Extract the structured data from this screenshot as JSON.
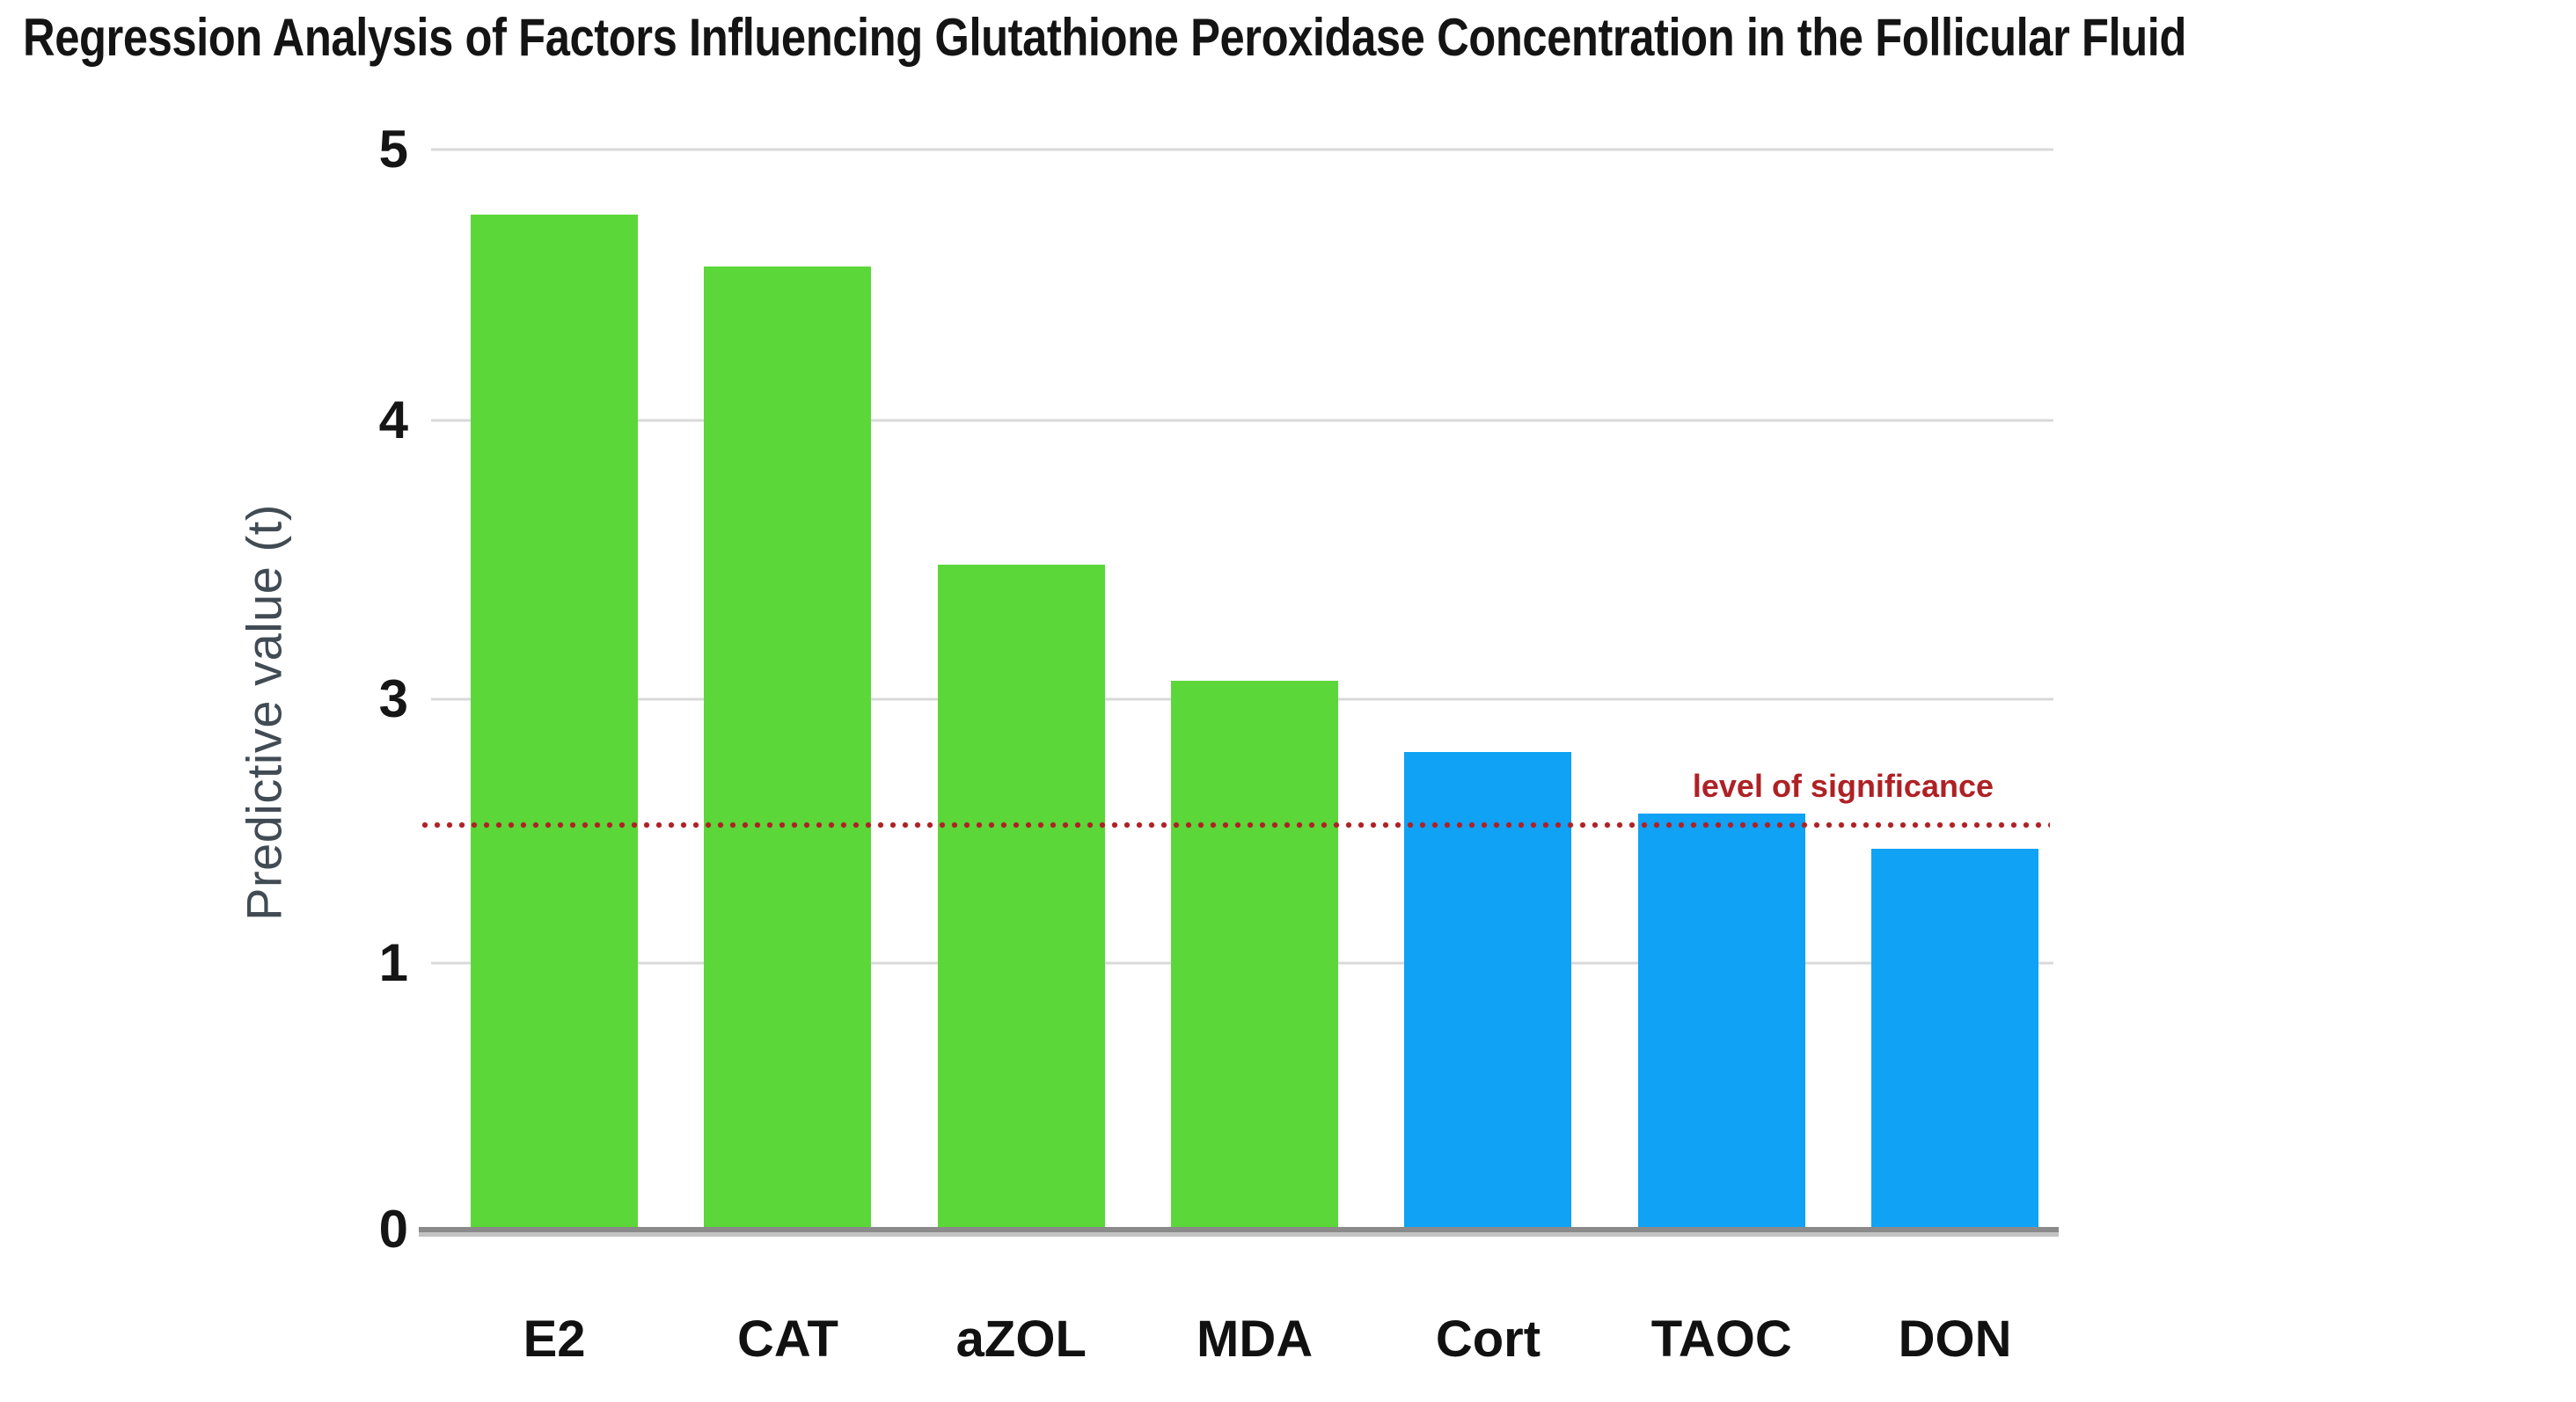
{
  "title": "Regression Analysis of Factors Influencing Glutathione Peroxidase Concentration in the Follicular Fluid",
  "colors": {
    "green": "#5cd739",
    "blue": "#0fa2f5",
    "significance_red": "#ae2125",
    "gridline": "#d9d9d9",
    "axis_line": "#8a8a8a",
    "axis_title_gray": "#414b54",
    "title_black": "#141414"
  },
  "chart_data": {
    "type": "bar",
    "title": "Regression Analysis of Factors Influencing Glutathione Peroxidase Concentration in the Follicular Fluid",
    "xlabel": "",
    "ylabel": "Predictive value (t)",
    "categories": [
      "E2",
      "CAT",
      "aZOL",
      "MDA",
      "Cort",
      "TAOC",
      "DON"
    ],
    "values": [
      4.76,
      4.57,
      3.48,
      3.07,
      2.6,
      2.13,
      1.87
    ],
    "bar_colors": [
      "green",
      "green",
      "green",
      "green",
      "blue",
      "blue",
      "blue"
    ],
    "ytick_labels": [
      "5",
      "4",
      "3",
      "1",
      "0"
    ],
    "ylim": [
      0,
      5
    ],
    "grid": true,
    "legend": null,
    "annotation": {
      "label": "level of significance",
      "value": 2
    },
    "layout": {
      "note": "visible y labels skip 2; five equally spaced gridlines; dotted significance line at t=2 drawn over bars",
      "yticks_top_pct": [
        0,
        25.1,
        50.9,
        75.3,
        100
      ],
      "bar_left_pct": [
        2.45,
        16.87,
        31.29,
        45.71,
        60.13,
        74.55,
        88.97
      ],
      "bar_width_pct": 10.33,
      "bar_height_pct": [
        94.0,
        89.2,
        61.6,
        50.8,
        44.2,
        38.5,
        35.3
      ],
      "significance_top_pct": 62.5
    }
  }
}
